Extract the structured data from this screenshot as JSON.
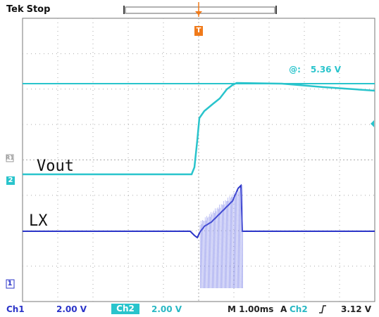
{
  "header": {
    "brand": "Tek",
    "acq_state": "Stop"
  },
  "trigger_marker": {
    "label": "T",
    "color": "#f07a1a"
  },
  "channel_markers": {
    "ref": "R1",
    "ch2": "2",
    "ch1": "1"
  },
  "labels": {
    "vout": "Vout",
    "lx": "LX"
  },
  "measurement": {
    "symbol": "@:",
    "value": "5.36 V"
  },
  "footer": {
    "ch1_name": "Ch1",
    "ch1_scale": "2.00 V",
    "ch2_name": "Ch2",
    "ch2_scale": "2.00 V",
    "timebase": "M 1.00ms",
    "trigger_mode": "A",
    "trigger_source": "Ch2",
    "trigger_slope_icon": "rising-edge-icon",
    "trigger_level": "3.12 V"
  },
  "colors": {
    "ch1": "#2b34c8",
    "ch2": "#29c4cc",
    "trigger": "#f07a1a",
    "grid": "#9a9a9a"
  }
}
